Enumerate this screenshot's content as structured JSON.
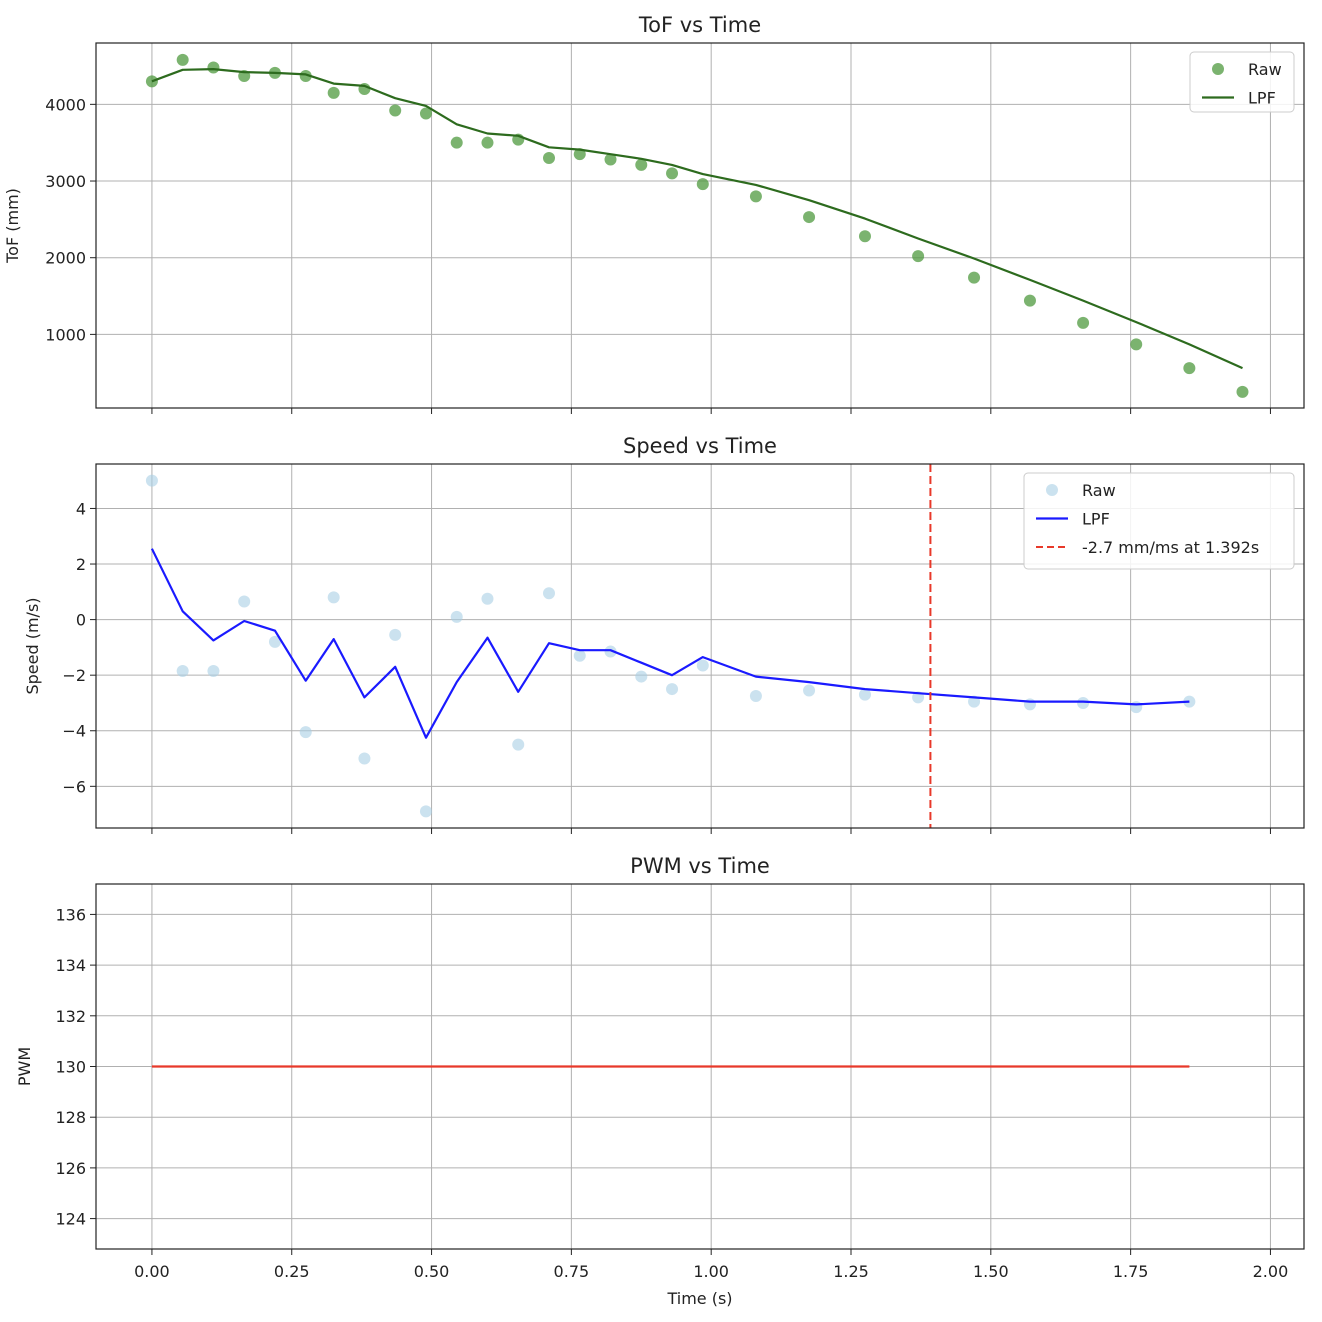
{
  "chart_data": [
    {
      "type": "line",
      "title": "ToF vs Time",
      "xlabel": "",
      "ylabel": "ToF (mm)",
      "xlim": [
        -0.1,
        2.06
      ],
      "ylim": [
        40,
        4800
      ],
      "yticks": [
        1000,
        2000,
        3000,
        4000
      ],
      "yticklabels": [
        "1000",
        "2000",
        "3000",
        "4000"
      ],
      "grid": true,
      "legend_position": "top-right",
      "series": [
        {
          "name": "Raw",
          "kind": "scatter",
          "color": "#4f9a3f",
          "x": [
            0.0,
            0.055,
            0.11,
            0.165,
            0.22,
            0.275,
            0.325,
            0.38,
            0.435,
            0.49,
            0.545,
            0.6,
            0.655,
            0.71,
            0.765,
            0.82,
            0.875,
            0.93,
            0.985,
            1.08,
            1.175,
            1.275,
            1.37,
            1.47,
            1.57,
            1.665,
            1.76,
            1.855,
            1.95
          ],
          "y": [
            4300,
            4580,
            4480,
            4370,
            4410,
            4370,
            4150,
            4200,
            3920,
            3880,
            3500,
            3500,
            3540,
            3300,
            3350,
            3280,
            3210,
            3100,
            2960,
            2800,
            2530,
            2280,
            2020,
            1740,
            1440,
            1150,
            870,
            560,
            250
          ]
        },
        {
          "name": "LPF",
          "kind": "line",
          "color": "#2d6b1e",
          "x": [
            0.0,
            0.055,
            0.11,
            0.165,
            0.22,
            0.275,
            0.325,
            0.38,
            0.435,
            0.49,
            0.545,
            0.6,
            0.655,
            0.71,
            0.765,
            0.82,
            0.875,
            0.93,
            0.985,
            1.08,
            1.175,
            1.275,
            1.37,
            1.47,
            1.57,
            1.665,
            1.76,
            1.855,
            1.95
          ],
          "y": [
            4300,
            4450,
            4460,
            4420,
            4410,
            4390,
            4270,
            4240,
            4080,
            3980,
            3740,
            3620,
            3590,
            3440,
            3410,
            3350,
            3290,
            3210,
            3090,
            2950,
            2750,
            2510,
            2250,
            1990,
            1710,
            1440,
            1160,
            870,
            560
          ]
        }
      ]
    },
    {
      "type": "line",
      "title": "Speed vs Time",
      "xlabel": "",
      "ylabel": "Speed (m/s)",
      "xlim": [
        -0.1,
        2.06
      ],
      "ylim": [
        -7.5,
        5.6
      ],
      "yticks": [
        -6,
        -4,
        -2,
        0,
        2,
        4
      ],
      "yticklabels": [
        "−6",
        "−4",
        "−2",
        "0",
        "2",
        "4"
      ],
      "grid": true,
      "legend_position": "top-right",
      "series": [
        {
          "name": "Raw",
          "kind": "scatter",
          "color": "#a9cfe4",
          "x": [
            0.0,
            0.055,
            0.11,
            0.165,
            0.22,
            0.275,
            0.325,
            0.38,
            0.435,
            0.49,
            0.545,
            0.6,
            0.655,
            0.71,
            0.765,
            0.82,
            0.875,
            0.93,
            0.985,
            1.08,
            1.175,
            1.275,
            1.37,
            1.47,
            1.57,
            1.665,
            1.76,
            1.855
          ],
          "y": [
            5.0,
            -1.85,
            -1.85,
            0.65,
            -0.8,
            -4.05,
            0.8,
            -5.0,
            -0.55,
            -6.9,
            0.1,
            0.75,
            -4.5,
            0.95,
            -1.3,
            -1.15,
            -2.05,
            -2.5,
            -1.65,
            -2.75,
            -2.55,
            -2.7,
            -2.8,
            -2.95,
            -3.05,
            -3.0,
            -3.15,
            -2.95
          ]
        },
        {
          "name": "LPF",
          "kind": "line",
          "color": "#1a1aff",
          "x": [
            0.0,
            0.055,
            0.11,
            0.165,
            0.22,
            0.275,
            0.325,
            0.38,
            0.435,
            0.49,
            0.545,
            0.6,
            0.655,
            0.71,
            0.765,
            0.82,
            0.875,
            0.93,
            0.985,
            1.08,
            1.175,
            1.275,
            1.37,
            1.47,
            1.57,
            1.665,
            1.76,
            1.855
          ],
          "y": [
            2.55,
            0.3,
            -0.75,
            -0.05,
            -0.4,
            -2.2,
            -0.7,
            -2.8,
            -1.7,
            -4.25,
            -2.25,
            -0.65,
            -2.6,
            -0.85,
            -1.1,
            -1.1,
            -1.55,
            -2.0,
            -1.35,
            -2.05,
            -2.25,
            -2.5,
            -2.65,
            -2.8,
            -2.95,
            -2.95,
            -3.05,
            -2.95
          ]
        }
      ],
      "annotations": [
        {
          "label": "-2.7 mm/ms at 1.392s",
          "kind": "vline",
          "x": 1.392,
          "color": "#e8392a"
        }
      ]
    },
    {
      "type": "line",
      "title": "PWM vs Time",
      "xlabel": "Time (s)",
      "ylabel": "PWM",
      "xlim": [
        -0.1,
        2.06
      ],
      "ylim": [
        122.8,
        137.2
      ],
      "xticks": [
        0.0,
        0.25,
        0.5,
        0.75,
        1.0,
        1.25,
        1.5,
        1.75,
        2.0
      ],
      "xticklabels": [
        "0.00",
        "0.25",
        "0.50",
        "0.75",
        "1.00",
        "1.25",
        "1.50",
        "1.75",
        "2.00"
      ],
      "yticks": [
        124,
        126,
        128,
        130,
        132,
        134,
        136
      ],
      "yticklabels": [
        "124",
        "126",
        "128",
        "130",
        "132",
        "134",
        "136"
      ],
      "grid": true,
      "series": [
        {
          "kind": "line",
          "color": "#e8392a",
          "x": [
            0.0,
            1.855
          ],
          "y": [
            130,
            130
          ]
        }
      ]
    }
  ]
}
